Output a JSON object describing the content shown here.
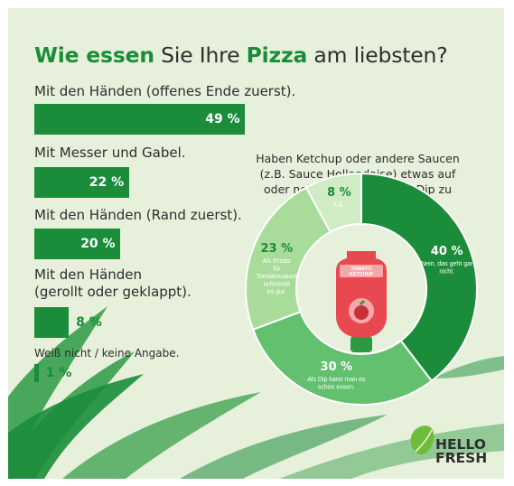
{
  "colors": {
    "background": "#e6f0da",
    "brand_green": "#1b8d3a",
    "mid_green": "#62c06f",
    "light_green": "#a9dc9a",
    "pale_green": "#d0ecc4",
    "ketchup_red": "#e8484f"
  },
  "title": {
    "part1": "Wie essen",
    "part2": " Sie Ihre ",
    "part3": "Pizza",
    "part4": " am liebsten?"
  },
  "chart_data": [
    {
      "type": "bar",
      "orientation": "horizontal",
      "unit": "%",
      "categories": [
        "Mit den Händen (offenes Ende zuerst).",
        "Mit Messer und Gabel.",
        "Mit den Händen (Rand zuerst).",
        "Mit den Händen\n(gerollt oder geklappt).",
        "Weiß nicht / keine Angabe."
      ],
      "values": [
        49,
        22,
        20,
        8,
        1
      ],
      "value_labels": [
        "49 %",
        "22 %",
        "20 %",
        "8 %",
        "1 %"
      ]
    },
    {
      "type": "pie",
      "donut": true,
      "title": "Haben Ketchup oder andere Saucen (z.B. Sauce Hollandaise) etwas auf oder neben einer Pizza als Dip zu suchen?",
      "slices": [
        {
          "value": 40,
          "value_label": "40 %",
          "label": "Nein, das geht gar nicht.",
          "color": "#1b8d3a"
        },
        {
          "value": 30,
          "value_label": "30 %",
          "label": "Als Dip kann man es schon essen.",
          "color": "#62c06f"
        },
        {
          "value": 23,
          "value_label": "23 %",
          "label": "Als Ersatz für Tomatensauce schmeckt es gut.",
          "color": "#a9dc9a"
        },
        {
          "value": 8,
          "value_label": "8 %",
          "label": "k.A.",
          "color": "#d0ecc4"
        }
      ]
    }
  ],
  "bottle": {
    "label": "TOMATO KETCHUP"
  },
  "logo": {
    "line1": "HELLO",
    "line2": "FRESH"
  }
}
